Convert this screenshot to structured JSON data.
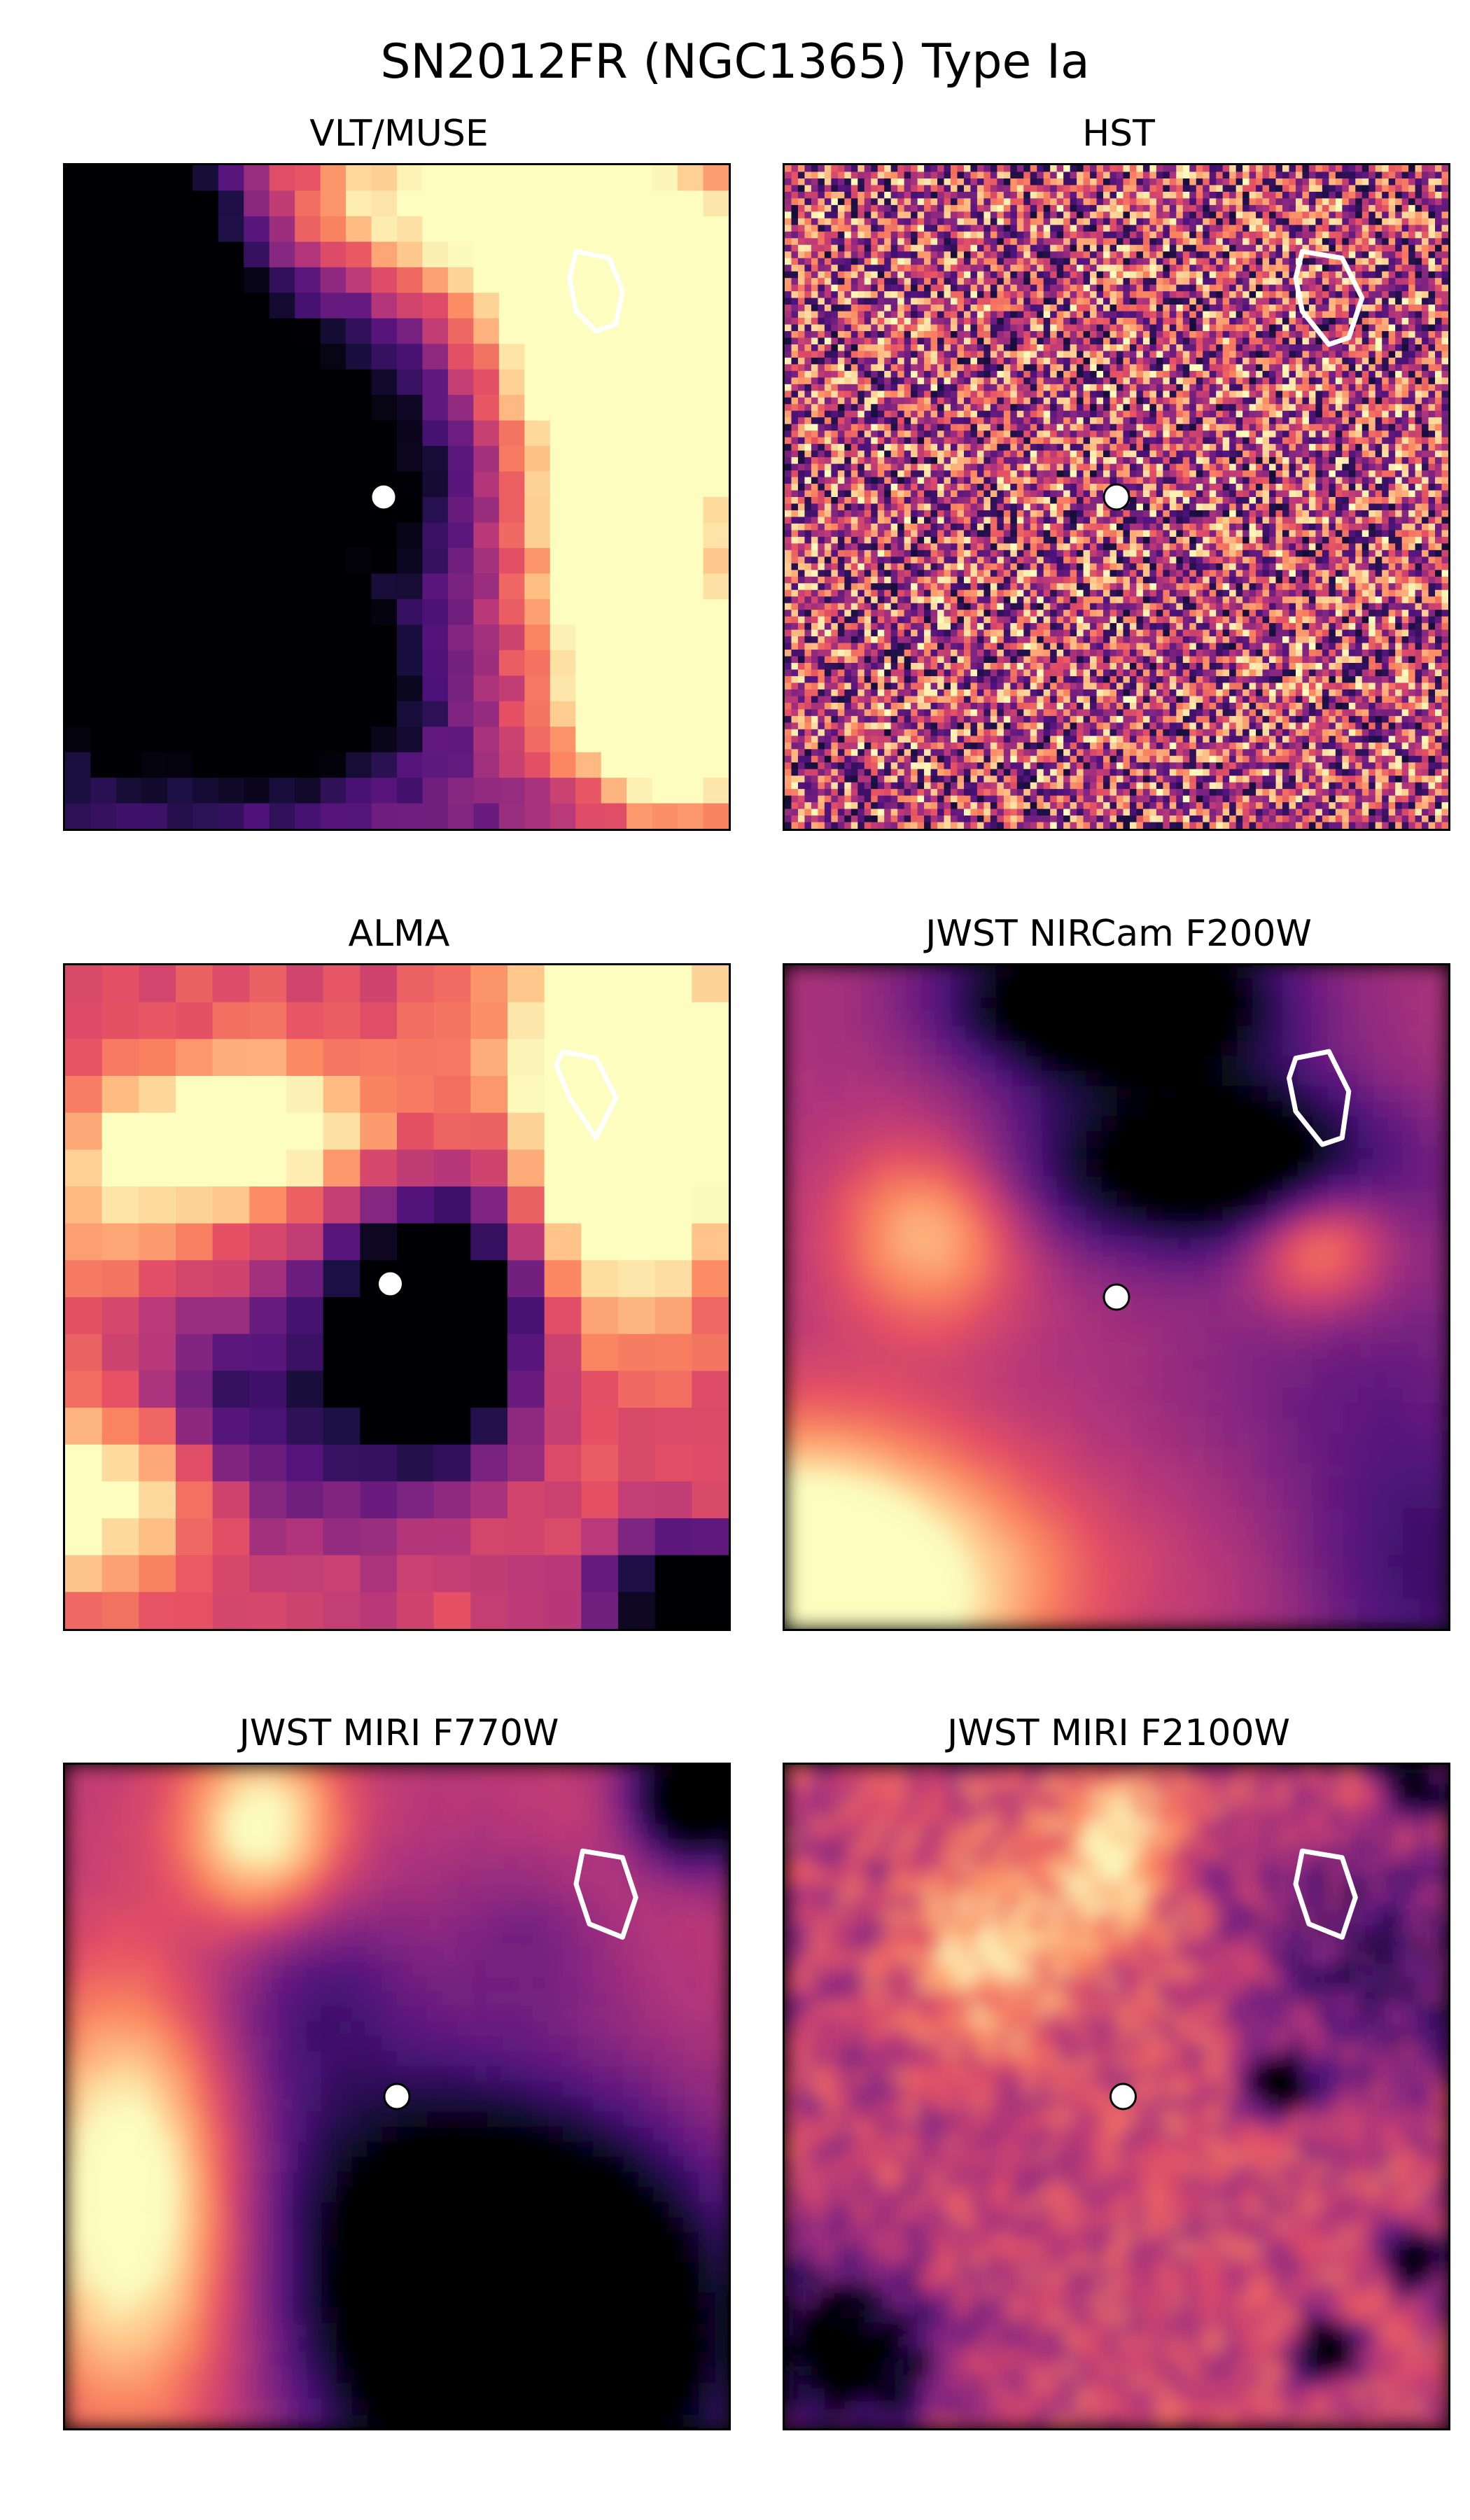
{
  "title": "SN2012FR (NGC1365) Type Ia",
  "colormap": [
    "#000004",
    "#1c1044",
    "#4f127b",
    "#812581",
    "#b5367a",
    "#e55064",
    "#fb8761",
    "#fec287",
    "#fcfdbf"
  ],
  "marker_colors": {
    "sn_fill": "#ffffff",
    "sn_edge": "#000000",
    "contour": "#ffffff"
  },
  "chart_data": [
    {
      "type": "heatmap",
      "title": "VLT/MUSE",
      "grid": [
        26,
        26
      ],
      "cmap": "magma",
      "style": "pixelated",
      "axes": "hidden",
      "sn_position": [
        0.48,
        0.5
      ],
      "contour": [
        [
          0.77,
          0.13
        ],
        [
          0.82,
          0.14
        ],
        [
          0.84,
          0.19
        ],
        [
          0.83,
          0.24
        ],
        [
          0.8,
          0.25
        ],
        [
          0.77,
          0.22
        ],
        [
          0.76,
          0.17
        ]
      ],
      "features": [
        {
          "x": 0.88,
          "y": 0.22,
          "sx": 0.16,
          "sy": 0.14,
          "amp": 1.4
        },
        {
          "x": 0.85,
          "y": 0.58,
          "sx": 0.12,
          "sy": 0.2,
          "amp": 1.0
        },
        {
          "x": 0.55,
          "y": 0.05,
          "sx": 0.2,
          "sy": 0.1,
          "amp": 0.7
        },
        {
          "x": 0.95,
          "y": 0.85,
          "sx": 0.1,
          "sy": 0.1,
          "amp": 0.9
        },
        {
          "x": 0.08,
          "y": 0.3,
          "sx": 0.12,
          "sy": 0.3,
          "amp": -1.0
        },
        {
          "x": 0.42,
          "y": 0.45,
          "sx": 0.12,
          "sy": 0.14,
          "amp": -0.5
        },
        {
          "x": 0.35,
          "y": 0.8,
          "sx": 0.12,
          "sy": 0.08,
          "amp": -0.7
        }
      ],
      "base": 0.32,
      "noise": 0.12,
      "seed": 11
    },
    {
      "type": "heatmap",
      "title": "HST",
      "grid": [
        100,
        100
      ],
      "cmap": "magma",
      "style": "noise",
      "axes": "hidden",
      "sn_position": [
        0.5,
        0.5
      ],
      "contour": [
        [
          0.78,
          0.13
        ],
        [
          0.84,
          0.14
        ],
        [
          0.87,
          0.2
        ],
        [
          0.85,
          0.26
        ],
        [
          0.82,
          0.27
        ],
        [
          0.78,
          0.22
        ],
        [
          0.77,
          0.17
        ]
      ],
      "features": [],
      "base": 0.55,
      "noise": 0.9,
      "seed": 23
    },
    {
      "type": "heatmap",
      "title": "ALMA",
      "grid": [
        18,
        18
      ],
      "cmap": "magma",
      "style": "pixelated",
      "axes": "hidden",
      "sn_position": [
        0.49,
        0.48
      ],
      "contour": [
        [
          0.75,
          0.13
        ],
        [
          0.8,
          0.14
        ],
        [
          0.83,
          0.2
        ],
        [
          0.8,
          0.26
        ],
        [
          0.76,
          0.2
        ],
        [
          0.74,
          0.15
        ]
      ],
      "features": [
        {
          "x": 0.27,
          "y": 0.25,
          "sx": 0.14,
          "sy": 0.08,
          "amp": 0.6
        },
        {
          "x": 0.85,
          "y": 0.2,
          "sx": 0.1,
          "sy": 0.2,
          "amp": 1.0
        },
        {
          "x": 0.06,
          "y": 0.8,
          "sx": 0.12,
          "sy": 0.1,
          "amp": 0.5
        },
        {
          "x": 0.55,
          "y": 0.55,
          "sx": 0.1,
          "sy": 0.13,
          "amp": -1.2
        },
        {
          "x": 0.95,
          "y": 0.95,
          "sx": 0.1,
          "sy": 0.06,
          "amp": -0.9
        }
      ],
      "base": 0.6,
      "noise": 0.1,
      "seed": 37
    },
    {
      "type": "heatmap",
      "title": "JWST NIRCam F200W",
      "grid": [
        44,
        44
      ],
      "cmap": "magma",
      "style": "smooth",
      "axes": "hidden",
      "sn_position": [
        0.5,
        0.5
      ],
      "contour": [
        [
          0.77,
          0.14
        ],
        [
          0.82,
          0.13
        ],
        [
          0.85,
          0.19
        ],
        [
          0.84,
          0.26
        ],
        [
          0.81,
          0.27
        ],
        [
          0.77,
          0.22
        ],
        [
          0.76,
          0.17
        ]
      ],
      "features": [
        {
          "x": 0.5,
          "y": 0.05,
          "sx": 0.16,
          "sy": 0.08,
          "amp": -0.9
        },
        {
          "x": 0.62,
          "y": 0.3,
          "sx": 0.2,
          "sy": 0.09,
          "amp": -0.6
        },
        {
          "x": 0.05,
          "y": 0.95,
          "sx": 0.2,
          "sy": 0.16,
          "amp": 1.0
        },
        {
          "x": 0.8,
          "y": 0.42,
          "sx": 0.08,
          "sy": 0.07,
          "amp": 0.45
        },
        {
          "x": 0.22,
          "y": 0.4,
          "sx": 0.1,
          "sy": 0.1,
          "amp": 0.4
        }
      ],
      "base": 0.48,
      "noise": 0.02,
      "seed": 41
    },
    {
      "type": "heatmap",
      "title": "JWST MIRI F770W",
      "grid": [
        44,
        44
      ],
      "cmap": "magma",
      "style": "smooth",
      "axes": "hidden",
      "sn_position": [
        0.5,
        0.5
      ],
      "contour": [
        [
          0.78,
          0.13
        ],
        [
          0.84,
          0.14
        ],
        [
          0.86,
          0.2
        ],
        [
          0.84,
          0.26
        ],
        [
          0.79,
          0.24
        ],
        [
          0.77,
          0.18
        ]
      ],
      "features": [
        {
          "x": 0.1,
          "y": 0.6,
          "sx": 0.12,
          "sy": 0.25,
          "amp": 0.7
        },
        {
          "x": 0.3,
          "y": 0.1,
          "sx": 0.08,
          "sy": 0.1,
          "amp": 0.5
        },
        {
          "x": 0.7,
          "y": 0.85,
          "sx": 0.2,
          "sy": 0.2,
          "amp": -1.2
        },
        {
          "x": 0.95,
          "y": 0.05,
          "sx": 0.07,
          "sy": 0.07,
          "amp": -0.8
        }
      ],
      "base": 0.52,
      "noise": 0.03,
      "seed": 53
    },
    {
      "type": "heatmap",
      "title": "JWST MIRI F2100W",
      "grid": [
        50,
        50
      ],
      "cmap": "magma",
      "style": "smooth",
      "axes": "hidden",
      "sn_position": [
        0.51,
        0.5
      ],
      "contour": [
        [
          0.78,
          0.13
        ],
        [
          0.84,
          0.14
        ],
        [
          0.86,
          0.2
        ],
        [
          0.84,
          0.26
        ],
        [
          0.79,
          0.24
        ],
        [
          0.77,
          0.18
        ]
      ],
      "features": [
        {
          "x": 0.5,
          "y": 0.13,
          "sx": 0.06,
          "sy": 0.08,
          "amp": 0.5
        },
        {
          "x": 0.3,
          "y": 0.3,
          "sx": 0.1,
          "sy": 0.12,
          "amp": 0.5
        },
        {
          "x": 0.75,
          "y": 0.48,
          "sx": 0.03,
          "sy": 0.03,
          "amp": -1.0
        },
        {
          "x": 0.82,
          "y": 0.88,
          "sx": 0.03,
          "sy": 0.03,
          "amp": -1.0
        },
        {
          "x": 0.95,
          "y": 0.75,
          "sx": 0.03,
          "sy": 0.03,
          "amp": -0.9
        },
        {
          "x": 0.95,
          "y": 0.03,
          "sx": 0.03,
          "sy": 0.03,
          "amp": -0.9
        },
        {
          "x": 0.1,
          "y": 0.9,
          "sx": 0.1,
          "sy": 0.08,
          "amp": -0.7
        }
      ],
      "base": 0.55,
      "noise": 0.35,
      "seed": 67
    }
  ]
}
